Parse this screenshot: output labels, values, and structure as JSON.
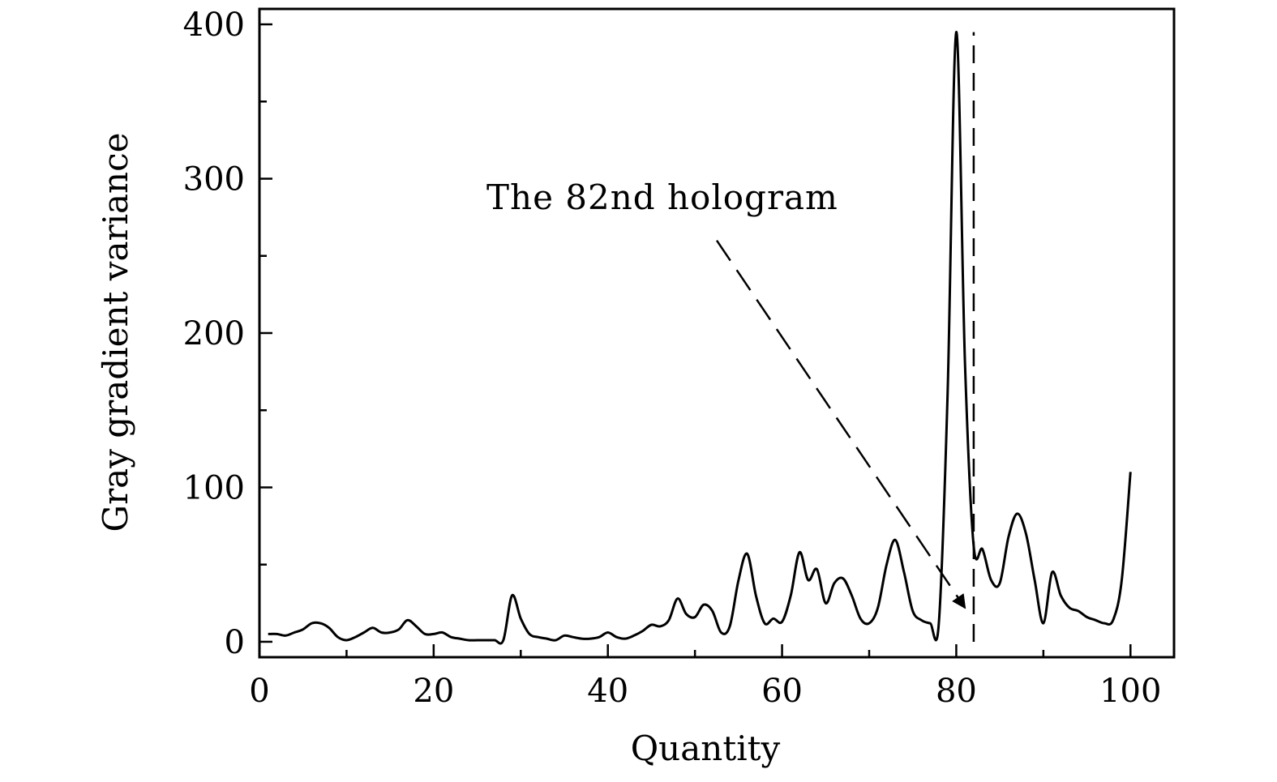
{
  "chart_data": {
    "type": "line",
    "xlabel": "Quantity",
    "ylabel": "Gray gradient variance",
    "xlim": [
      0,
      105
    ],
    "ylim": [
      -10,
      410
    ],
    "xticks": [
      0,
      20,
      40,
      60,
      80,
      100
    ],
    "yticks": [
      0,
      100,
      200,
      300,
      400
    ],
    "xtick_labels": [
      "0",
      "20",
      "40",
      "60",
      "80",
      "100"
    ],
    "ytick_labels": [
      "0",
      "100",
      "200",
      "300",
      "400"
    ],
    "x_minor_ticks": [
      10,
      30,
      50,
      70,
      90
    ],
    "y_minor_ticks": [
      50,
      150,
      250,
      350
    ],
    "grid": false,
    "annotation": {
      "text": "The 82nd hologram",
      "arrow_from": [
        52.5,
        260
      ],
      "arrow_to": [
        81,
        22
      ],
      "marker_x": 82,
      "marker_y": [
        0,
        395
      ]
    },
    "series": [
      {
        "x": [
          1,
          2,
          3,
          4,
          5,
          6,
          7,
          8,
          9,
          10,
          11,
          12,
          13,
          14,
          15,
          16,
          17,
          18,
          19,
          20,
          21,
          22,
          23,
          24,
          25,
          26,
          27,
          28,
          29,
          30,
          31,
          32,
          33,
          34,
          35,
          36,
          37,
          38,
          39,
          40,
          41,
          42,
          43,
          44,
          45,
          46,
          47,
          48,
          49,
          50,
          51,
          52,
          53,
          54,
          55,
          56,
          57,
          58,
          59,
          60,
          61,
          62,
          63,
          64,
          65,
          66,
          67,
          68,
          69,
          70,
          71,
          72,
          73,
          74,
          75,
          76,
          77,
          78,
          79,
          80,
          81,
          82,
          83,
          84,
          85,
          86,
          87,
          88,
          89,
          90,
          91,
          92,
          93,
          94,
          95,
          96,
          97,
          98,
          99,
          100
        ],
        "values": [
          5,
          5,
          4,
          6,
          8,
          12,
          12,
          9,
          3,
          1,
          3,
          6,
          9,
          6,
          6,
          8,
          14,
          10,
          5,
          5,
          6,
          3,
          2,
          1,
          1,
          1,
          1,
          1,
          30,
          15,
          5,
          3,
          2,
          1,
          4,
          3,
          2,
          2,
          3,
          6,
          3,
          2,
          4,
          7,
          11,
          10,
          14,
          28,
          18,
          16,
          24,
          20,
          6,
          10,
          40,
          57,
          30,
          12,
          15,
          13,
          30,
          58,
          40,
          47,
          25,
          38,
          41,
          30,
          15,
          12,
          22,
          50,
          66,
          45,
          20,
          14,
          12,
          12,
          160,
          395,
          180,
          62,
          60,
          40,
          38,
          68,
          83,
          70,
          40,
          12,
          45,
          30,
          22,
          20,
          16,
          14,
          12,
          14,
          40,
          110
        ]
      }
    ]
  }
}
